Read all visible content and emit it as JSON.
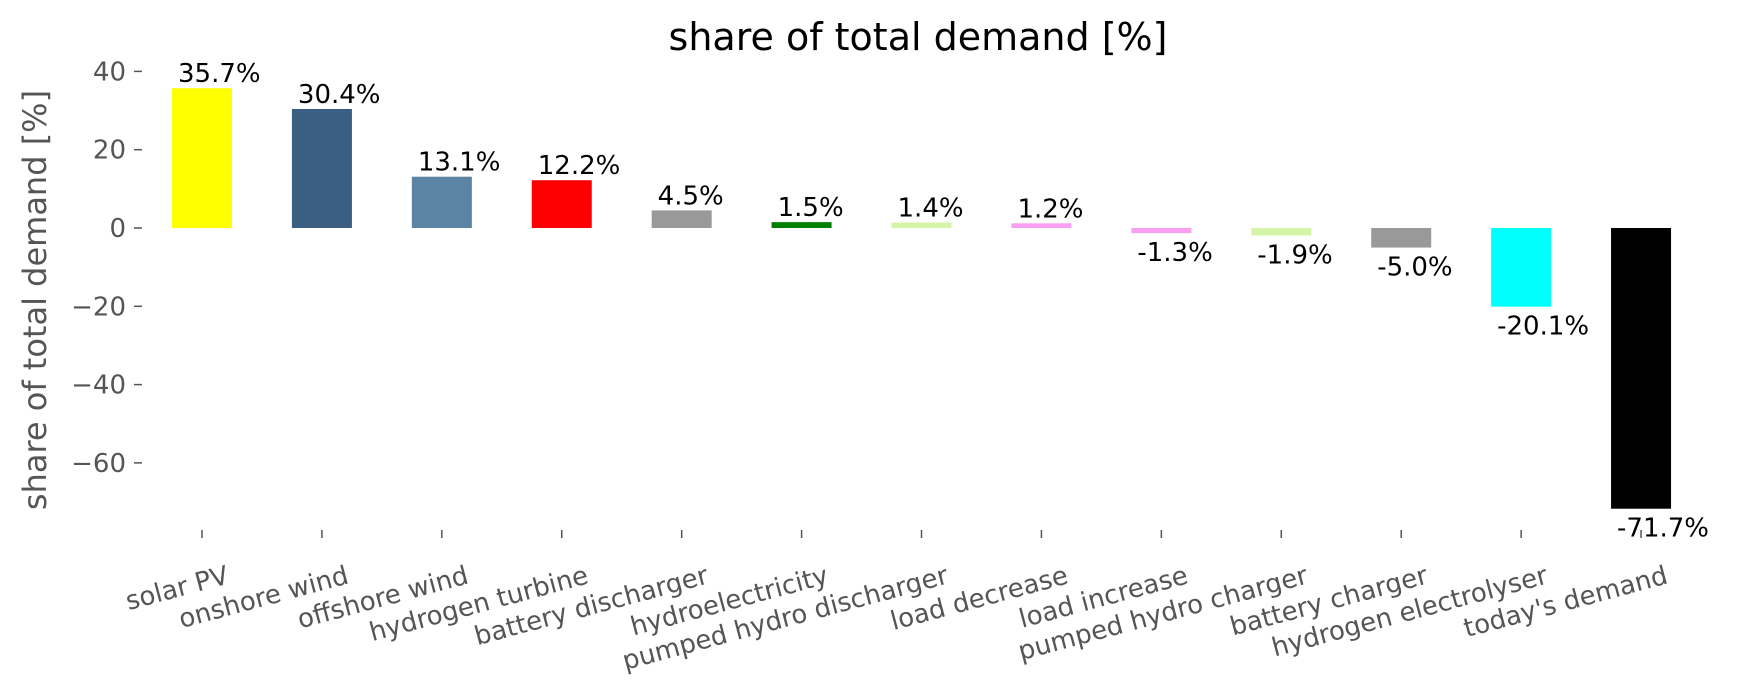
{
  "chart_data": {
    "type": "bar",
    "title": "share of total demand [%]",
    "ylabel": "share of total demand [%]",
    "xlabel": "",
    "ylim": [
      -78,
      44
    ],
    "yticks": [
      40,
      20,
      0,
      -20,
      -40,
      -60
    ],
    "ytick_labels": [
      "40",
      "20",
      "0",
      "−20",
      "−40",
      "−60"
    ],
    "grid": false,
    "categories": [
      "solar PV",
      "onshore wind",
      "offshore wind",
      "hydrogen turbine",
      "battery discharger",
      "hydroelectricity",
      "pumped hydro discharger",
      "load decrease",
      "load increase",
      "pumped hydro charger",
      "battery charger",
      "hydrogen electrolyser",
      "today's demand"
    ],
    "values": [
      35.7,
      30.4,
      13.1,
      12.2,
      4.5,
      1.5,
      1.4,
      1.2,
      -1.3,
      -1.9,
      -5.0,
      -20.1,
      -71.7
    ],
    "value_labels": [
      "35.7%",
      "30.4%",
      "13.1%",
      "12.2%",
      "4.5%",
      "1.5%",
      "1.4%",
      "1.2%",
      "-1.3%",
      "-1.9%",
      "-5.0%",
      "-20.1%",
      "-71.7%"
    ],
    "colors": [
      "#ffff00",
      "#3a5f82",
      "#5b83a4",
      "#ff0000",
      "#999999",
      "#008000",
      "#d4f5a8",
      "#f9a0f5",
      "#f9a0f5",
      "#d4f5a8",
      "#999999",
      "#00ffff",
      "#000000"
    ]
  }
}
